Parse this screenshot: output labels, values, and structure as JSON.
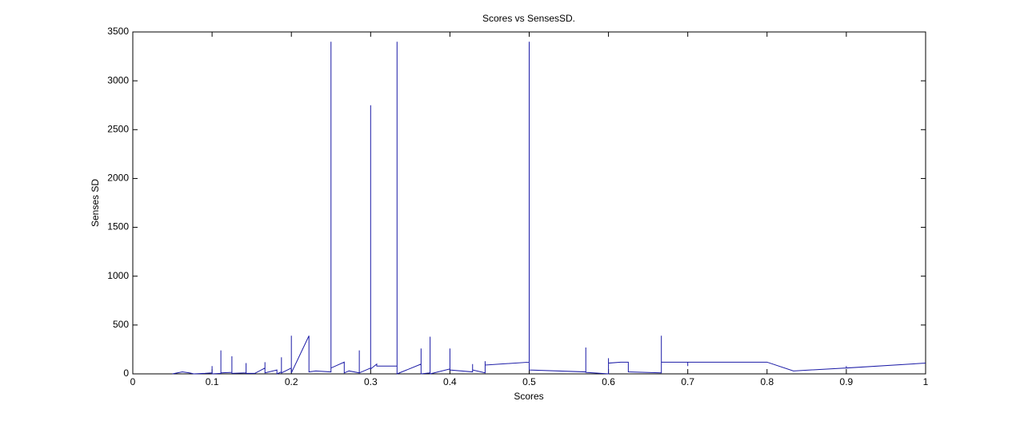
{
  "chart_data": {
    "type": "line",
    "title": "Scores vs SensesSD.",
    "xlabel": "Scores",
    "ylabel": "Senses SD",
    "x": [
      0.05,
      0.0625,
      0.0714,
      0.0769,
      0.0909,
      0.1,
      0.1,
      0.1,
      0.1111,
      0.1111,
      0.1111,
      0.125,
      0.125,
      0.125,
      0.1429,
      0.1429,
      0.1429,
      0.1538,
      0.1667,
      0.1667,
      0.1667,
      0.1818,
      0.1818,
      0.1875,
      0.1875,
      0.1875,
      0.2,
      0.2,
      0.2,
      0.2222,
      0.2222,
      0.2308,
      0.25,
      0.25,
      0.25,
      0.2667,
      0.2667,
      0.2727,
      0.2857,
      0.2857,
      0.2857,
      0.3,
      0.3,
      0.3,
      0.3077,
      0.3077,
      0.3333,
      0.3333,
      0.3333,
      0.3636,
      0.3636,
      0.3636,
      0.375,
      0.375,
      0.375,
      0.4,
      0.4,
      0.4,
      0.4286,
      0.4286,
      0.4286,
      0.4444,
      0.4444,
      0.4444,
      0.5,
      0.5,
      0.5,
      0.5714,
      0.5714,
      0.5714,
      0.6,
      0.6,
      0.6,
      0.6154,
      0.625,
      0.625,
      0.6667,
      0.6667,
      0.6667,
      0.7,
      0.7,
      0.7,
      0.8,
      0.8333,
      0.9,
      0.9,
      0.9,
      1
    ],
    "values": [
      0,
      20,
      10,
      0,
      5,
      10,
      80,
      0,
      5,
      240,
      10,
      15,
      180,
      5,
      10,
      110,
      5,
      5,
      60,
      120,
      10,
      40,
      0,
      20,
      170,
      10,
      60,
      390,
      10,
      390,
      20,
      30,
      20,
      3400,
      60,
      120,
      10,
      30,
      10,
      240,
      10,
      60,
      2750,
      50,
      100,
      80,
      80,
      3400,
      0,
      100,
      260,
      0,
      10,
      380,
      0,
      50,
      260,
      40,
      20,
      100,
      40,
      10,
      130,
      90,
      120,
      3400,
      40,
      20,
      270,
      15,
      0,
      160,
      110,
      120,
      120,
      20,
      10,
      390,
      120,
      120,
      80,
      120,
      120,
      30,
      60,
      80,
      60,
      110
    ],
    "color": "#1a1aa6",
    "xlim": [
      0,
      1
    ],
    "xticks": [
      0,
      0.1,
      0.2,
      0.3,
      0.4,
      0.5,
      0.6,
      0.7,
      0.8,
      0.9,
      1
    ],
    "ylim": [
      0,
      3500
    ],
    "yticks": [
      0,
      500,
      1000,
      1500,
      2000,
      2500,
      3000,
      3500
    ]
  }
}
